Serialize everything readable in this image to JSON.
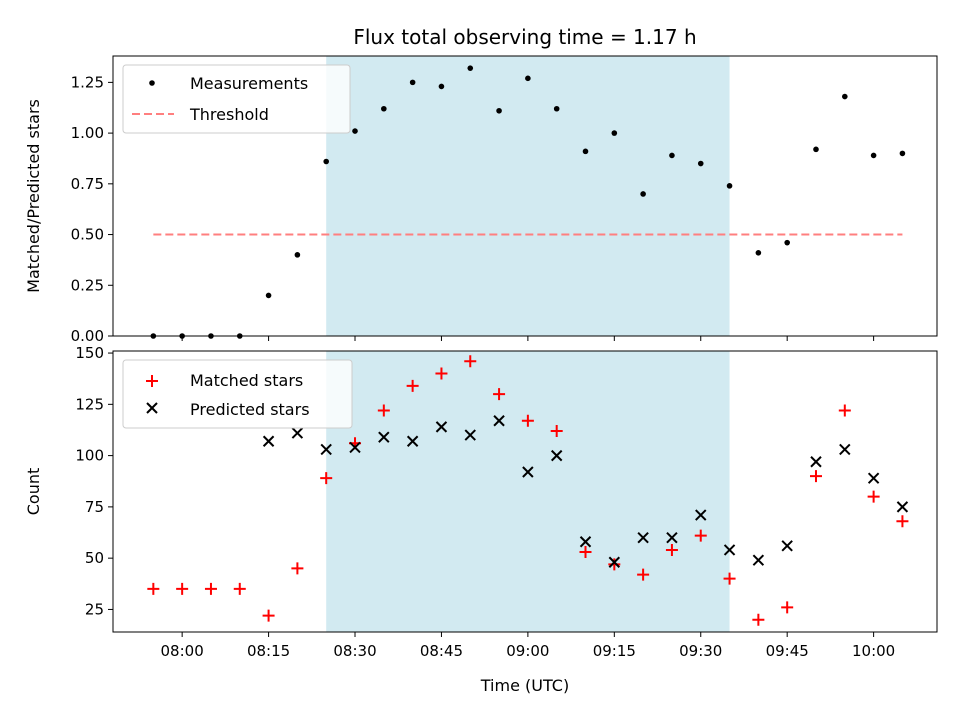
{
  "chart_data": [
    {
      "type": "scatter",
      "title": "Flux total observing time = 1.17 h",
      "xlabel": "",
      "ylabel": "Matched/Predicted stars",
      "ylim": [
        0,
        1.38
      ],
      "yticks": [
        "0.00",
        "0.25",
        "0.50",
        "0.75",
        "1.00",
        "1.25"
      ],
      "ytick_values": [
        0,
        0.25,
        0.5,
        0.75,
        1.0,
        1.25
      ],
      "shaded_span": {
        "start": "08:25",
        "end": "09:35",
        "color": "#add8e6"
      },
      "legend": {
        "placement": "top-left"
      },
      "series": [
        {
          "name": "Measurements",
          "marker": "dot",
          "color": "#000000",
          "x": [
            "07:55",
            "08:00",
            "08:05",
            "08:10",
            "08:15",
            "08:20",
            "08:25",
            "08:30",
            "08:35",
            "08:40",
            "08:45",
            "08:50",
            "08:55",
            "09:00",
            "09:05",
            "09:10",
            "09:15",
            "09:20",
            "09:25",
            "09:30",
            "09:35",
            "09:40",
            "09:45",
            "09:50",
            "09:55",
            "10:00",
            "10:05"
          ],
          "y": [
            0.0,
            0.0,
            0.0,
            0.0,
            0.2,
            0.4,
            0.86,
            1.01,
            1.12,
            1.25,
            1.23,
            1.32,
            1.11,
            1.27,
            1.12,
            0.91,
            1.0,
            0.7,
            0.89,
            0.85,
            0.74,
            0.41,
            0.46,
            0.92,
            1.18,
            0.89,
            0.9
          ]
        },
        {
          "name": "Threshold",
          "marker": "dashed-line",
          "color": "#ff7f7f",
          "x": [
            "07:55",
            "10:05"
          ],
          "y": [
            0.5,
            0.5
          ]
        }
      ]
    },
    {
      "type": "scatter",
      "title": "",
      "xlabel": "Time (UTC)",
      "ylabel": "Count",
      "ylim": [
        14,
        151
      ],
      "yticks": [
        "25",
        "50",
        "75",
        "100",
        "125",
        "150"
      ],
      "ytick_values": [
        25,
        50,
        75,
        100,
        125,
        150
      ],
      "xlim": [
        "07:48",
        "10:11"
      ],
      "xticks": [
        "08:00",
        "08:15",
        "08:30",
        "08:45",
        "09:00",
        "09:15",
        "09:30",
        "09:45",
        "10:00"
      ],
      "shaded_span": {
        "start": "08:25",
        "end": "09:35",
        "color": "#add8e6"
      },
      "legend": {
        "placement": "top-left"
      },
      "series": [
        {
          "name": "Matched stars",
          "marker": "plus",
          "color": "#ff0000",
          "x": [
            "07:55",
            "08:00",
            "08:05",
            "08:10",
            "08:15",
            "08:20",
            "08:25",
            "08:30",
            "08:35",
            "08:40",
            "08:45",
            "08:50",
            "08:55",
            "09:00",
            "09:05",
            "09:10",
            "09:15",
            "09:20",
            "09:25",
            "09:30",
            "09:35",
            "09:40",
            "09:45",
            "09:50",
            "09:55",
            "10:00",
            "10:05"
          ],
          "y": [
            35,
            35,
            35,
            35,
            22,
            45,
            89,
            106,
            122,
            134,
            140,
            146,
            130,
            117,
            112,
            53,
            47,
            42,
            54,
            61,
            40,
            20,
            26,
            90,
            122,
            80,
            68
          ]
        },
        {
          "name": "Predicted stars",
          "marker": "x",
          "color": "#000000",
          "x": [
            "08:15",
            "08:20",
            "08:25",
            "08:30",
            "08:35",
            "08:40",
            "08:45",
            "08:50",
            "08:55",
            "09:00",
            "09:05",
            "09:10",
            "09:15",
            "09:20",
            "09:25",
            "09:30",
            "09:35",
            "09:40",
            "09:45",
            "09:50",
            "09:55",
            "10:00",
            "10:05"
          ],
          "y": [
            107,
            111,
            103,
            104,
            109,
            107,
            114,
            110,
            117,
            92,
            100,
            58,
            48,
            60,
            60,
            71,
            54,
            49,
            56,
            97,
            103,
            89,
            75
          ]
        }
      ]
    }
  ]
}
